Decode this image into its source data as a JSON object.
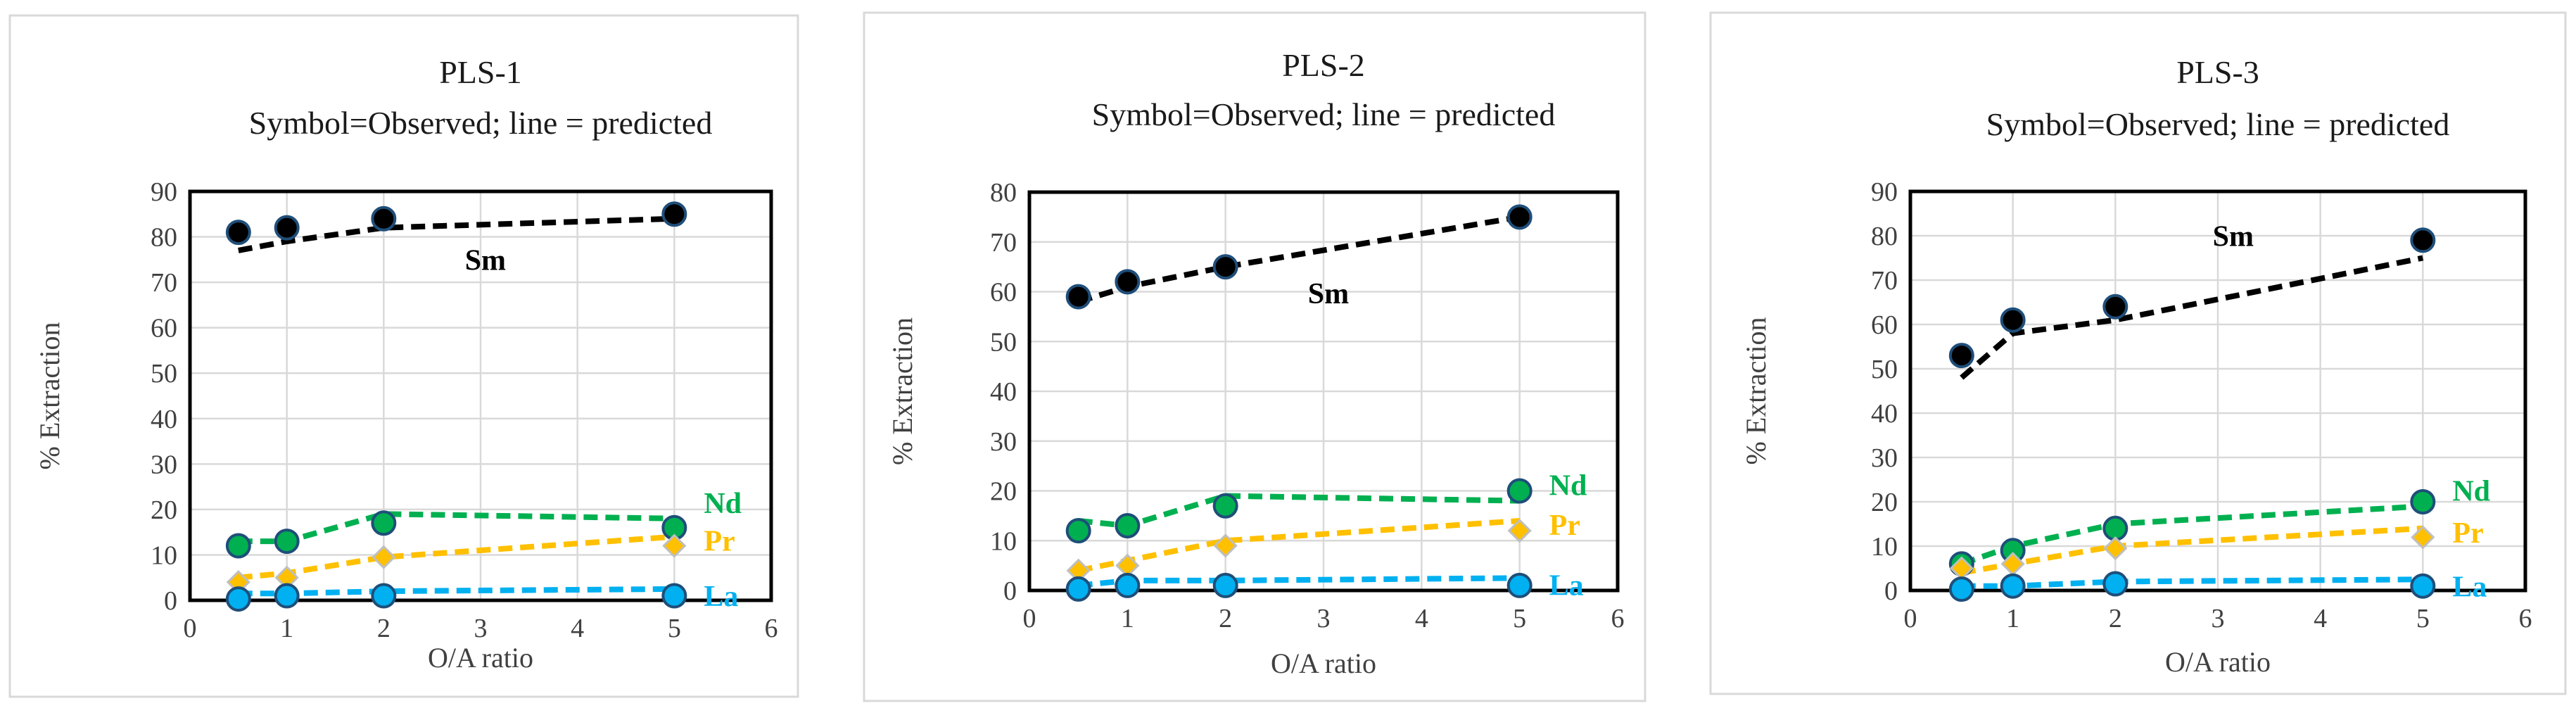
{
  "chart_data": [
    {
      "type": "scatter",
      "title": "PLS-1",
      "subtitle": "Symbol=Observed; line = predicted",
      "xlabel": "O/A ratio",
      "ylabel": "% Extraction",
      "xlim": [
        0,
        6
      ],
      "ylim": [
        0,
        90
      ],
      "xticks": [
        0,
        1,
        2,
        3,
        4,
        5,
        6
      ],
      "yticks": [
        0,
        10,
        20,
        30,
        40,
        50,
        60,
        70,
        80,
        90
      ],
      "grid": true,
      "series": [
        {
          "name": "Sm",
          "color": "#000000",
          "marker": "circle",
          "label_pos": "upper",
          "observed_x": [
            0.5,
            1,
            2,
            5
          ],
          "observed_y": [
            81,
            82,
            84,
            85
          ],
          "predicted_x": [
            0.5,
            1,
            2,
            5
          ],
          "predicted_y": [
            77,
            79,
            82,
            84
          ]
        },
        {
          "name": "Nd",
          "color": "#00b050",
          "marker": "circle",
          "label_pos": "right",
          "observed_x": [
            0.5,
            1,
            2,
            5
          ],
          "observed_y": [
            12,
            13,
            17,
            16
          ],
          "predicted_x": [
            0.5,
            1,
            2,
            5
          ],
          "predicted_y": [
            13,
            13,
            19,
            18
          ]
        },
        {
          "name": "Pr",
          "color": "#ffc000",
          "marker": "diamond",
          "label_pos": "right",
          "observed_x": [
            0.5,
            1,
            2,
            5
          ],
          "observed_y": [
            4,
            5,
            9.5,
            12
          ],
          "predicted_x": [
            0.5,
            1,
            2,
            5
          ],
          "predicted_y": [
            5,
            6,
            9.5,
            14
          ]
        },
        {
          "name": "La",
          "color": "#00b0f0",
          "marker": "circle",
          "label_pos": "right",
          "observed_x": [
            0.5,
            1,
            2,
            5
          ],
          "observed_y": [
            0.3,
            1,
            1,
            1
          ],
          "predicted_x": [
            0.5,
            1,
            2,
            5
          ],
          "predicted_y": [
            1.5,
            1.5,
            2,
            2.5
          ]
        }
      ]
    },
    {
      "type": "scatter",
      "title": "PLS-2",
      "subtitle": "Symbol=Observed; line = predicted",
      "xlabel": "O/A ratio",
      "ylabel": "% Extraction",
      "xlim": [
        0,
        6
      ],
      "ylim": [
        0,
        80
      ],
      "xticks": [
        0,
        1,
        2,
        3,
        4,
        5,
        6
      ],
      "yticks": [
        0,
        10,
        20,
        30,
        40,
        50,
        60,
        70,
        80
      ],
      "grid": true,
      "series": [
        {
          "name": "Sm",
          "color": "#000000",
          "marker": "circle",
          "label_pos": "lower",
          "observed_x": [
            0.5,
            1,
            2,
            5
          ],
          "observed_y": [
            59,
            62,
            65,
            75
          ],
          "predicted_x": [
            0.5,
            1,
            2,
            5
          ],
          "predicted_y": [
            58,
            61,
            65,
            75
          ]
        },
        {
          "name": "Nd",
          "color": "#00b050",
          "marker": "circle",
          "label_pos": "right",
          "observed_x": [
            0.5,
            1,
            2,
            5
          ],
          "observed_y": [
            12,
            13,
            17,
            20
          ],
          "predicted_x": [
            0.5,
            1,
            2,
            5
          ],
          "predicted_y": [
            14,
            13,
            19,
            18
          ]
        },
        {
          "name": "Pr",
          "color": "#ffc000",
          "marker": "diamond",
          "label_pos": "right",
          "observed_x": [
            0.5,
            1,
            2,
            5
          ],
          "observed_y": [
            4,
            5,
            9,
            12
          ],
          "predicted_x": [
            0.5,
            1,
            2,
            5
          ],
          "predicted_y": [
            4,
            6,
            10,
            14
          ]
        },
        {
          "name": "La",
          "color": "#00b0f0",
          "marker": "circle",
          "label_pos": "right",
          "observed_x": [
            0.5,
            1,
            2,
            5
          ],
          "observed_y": [
            0.3,
            1,
            1,
            1
          ],
          "predicted_x": [
            0.5,
            1,
            2,
            5
          ],
          "predicted_y": [
            1,
            2,
            2,
            2.5
          ]
        }
      ]
    },
    {
      "type": "scatter",
      "title": "PLS-3",
      "subtitle": "Symbol=Observed; line = predicted",
      "xlabel": "O/A ratio",
      "ylabel": "% Extraction",
      "xlim": [
        0,
        6
      ],
      "ylim": [
        0,
        90
      ],
      "xticks": [
        0,
        1,
        2,
        3,
        4,
        5,
        6
      ],
      "yticks": [
        0,
        10,
        20,
        30,
        40,
        50,
        60,
        70,
        80,
        90
      ],
      "grid": true,
      "series": [
        {
          "name": "Sm",
          "color": "#000000",
          "marker": "circle",
          "label_pos": "upper",
          "observed_x": [
            0.5,
            1,
            2,
            5
          ],
          "observed_y": [
            53,
            61,
            64,
            79
          ],
          "predicted_x": [
            0.5,
            1,
            2,
            5
          ],
          "predicted_y": [
            48,
            58,
            61,
            75
          ]
        },
        {
          "name": "Nd",
          "color": "#00b050",
          "marker": "circle",
          "label_pos": "right",
          "observed_x": [
            0.5,
            1,
            2,
            5
          ],
          "observed_y": [
            6,
            9,
            14,
            20
          ],
          "predicted_x": [
            0.5,
            1,
            2,
            5
          ],
          "predicted_y": [
            6,
            10,
            15,
            19
          ]
        },
        {
          "name": "Pr",
          "color": "#ffc000",
          "marker": "diamond",
          "label_pos": "right",
          "observed_x": [
            0.5,
            1,
            2,
            5
          ],
          "observed_y": [
            5,
            6,
            9.5,
            12
          ],
          "predicted_x": [
            0.5,
            1,
            2,
            5
          ],
          "predicted_y": [
            4,
            6,
            10,
            14
          ]
        },
        {
          "name": "La",
          "color": "#00b0f0",
          "marker": "circle",
          "label_pos": "right",
          "observed_x": [
            0.5,
            1,
            2,
            5
          ],
          "observed_y": [
            0.3,
            1,
            1.5,
            1
          ],
          "predicted_x": [
            0.5,
            1,
            2,
            5
          ],
          "predicted_y": [
            1,
            1,
            2,
            2.5
          ]
        }
      ]
    }
  ]
}
